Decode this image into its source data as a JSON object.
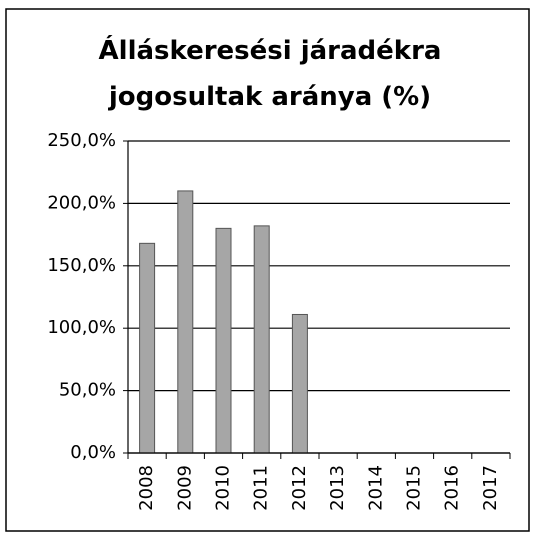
{
  "chart_data": {
    "type": "bar",
    "title": "Álláskeresési járadékra jogosultak aránya (%)",
    "categories": [
      "2008",
      "2009",
      "2010",
      "2011",
      "2012",
      "2013",
      "2014",
      "2015",
      "2016",
      "2017"
    ],
    "values": [
      168,
      210,
      180,
      182,
      111,
      null,
      null,
      null,
      null,
      null
    ],
    "color": "#a6a6a6",
    "ylim": [
      0,
      250
    ],
    "yticks": [
      {
        "value": 0,
        "label": "0,0%"
      },
      {
        "value": 50,
        "label": "50,0%"
      },
      {
        "value": 100,
        "label": "100,0%"
      },
      {
        "value": 150,
        "label": "150,0%"
      },
      {
        "value": 200,
        "label": "200,0%"
      },
      {
        "value": 250,
        "label": "250,0%"
      }
    ],
    "grid": true
  }
}
